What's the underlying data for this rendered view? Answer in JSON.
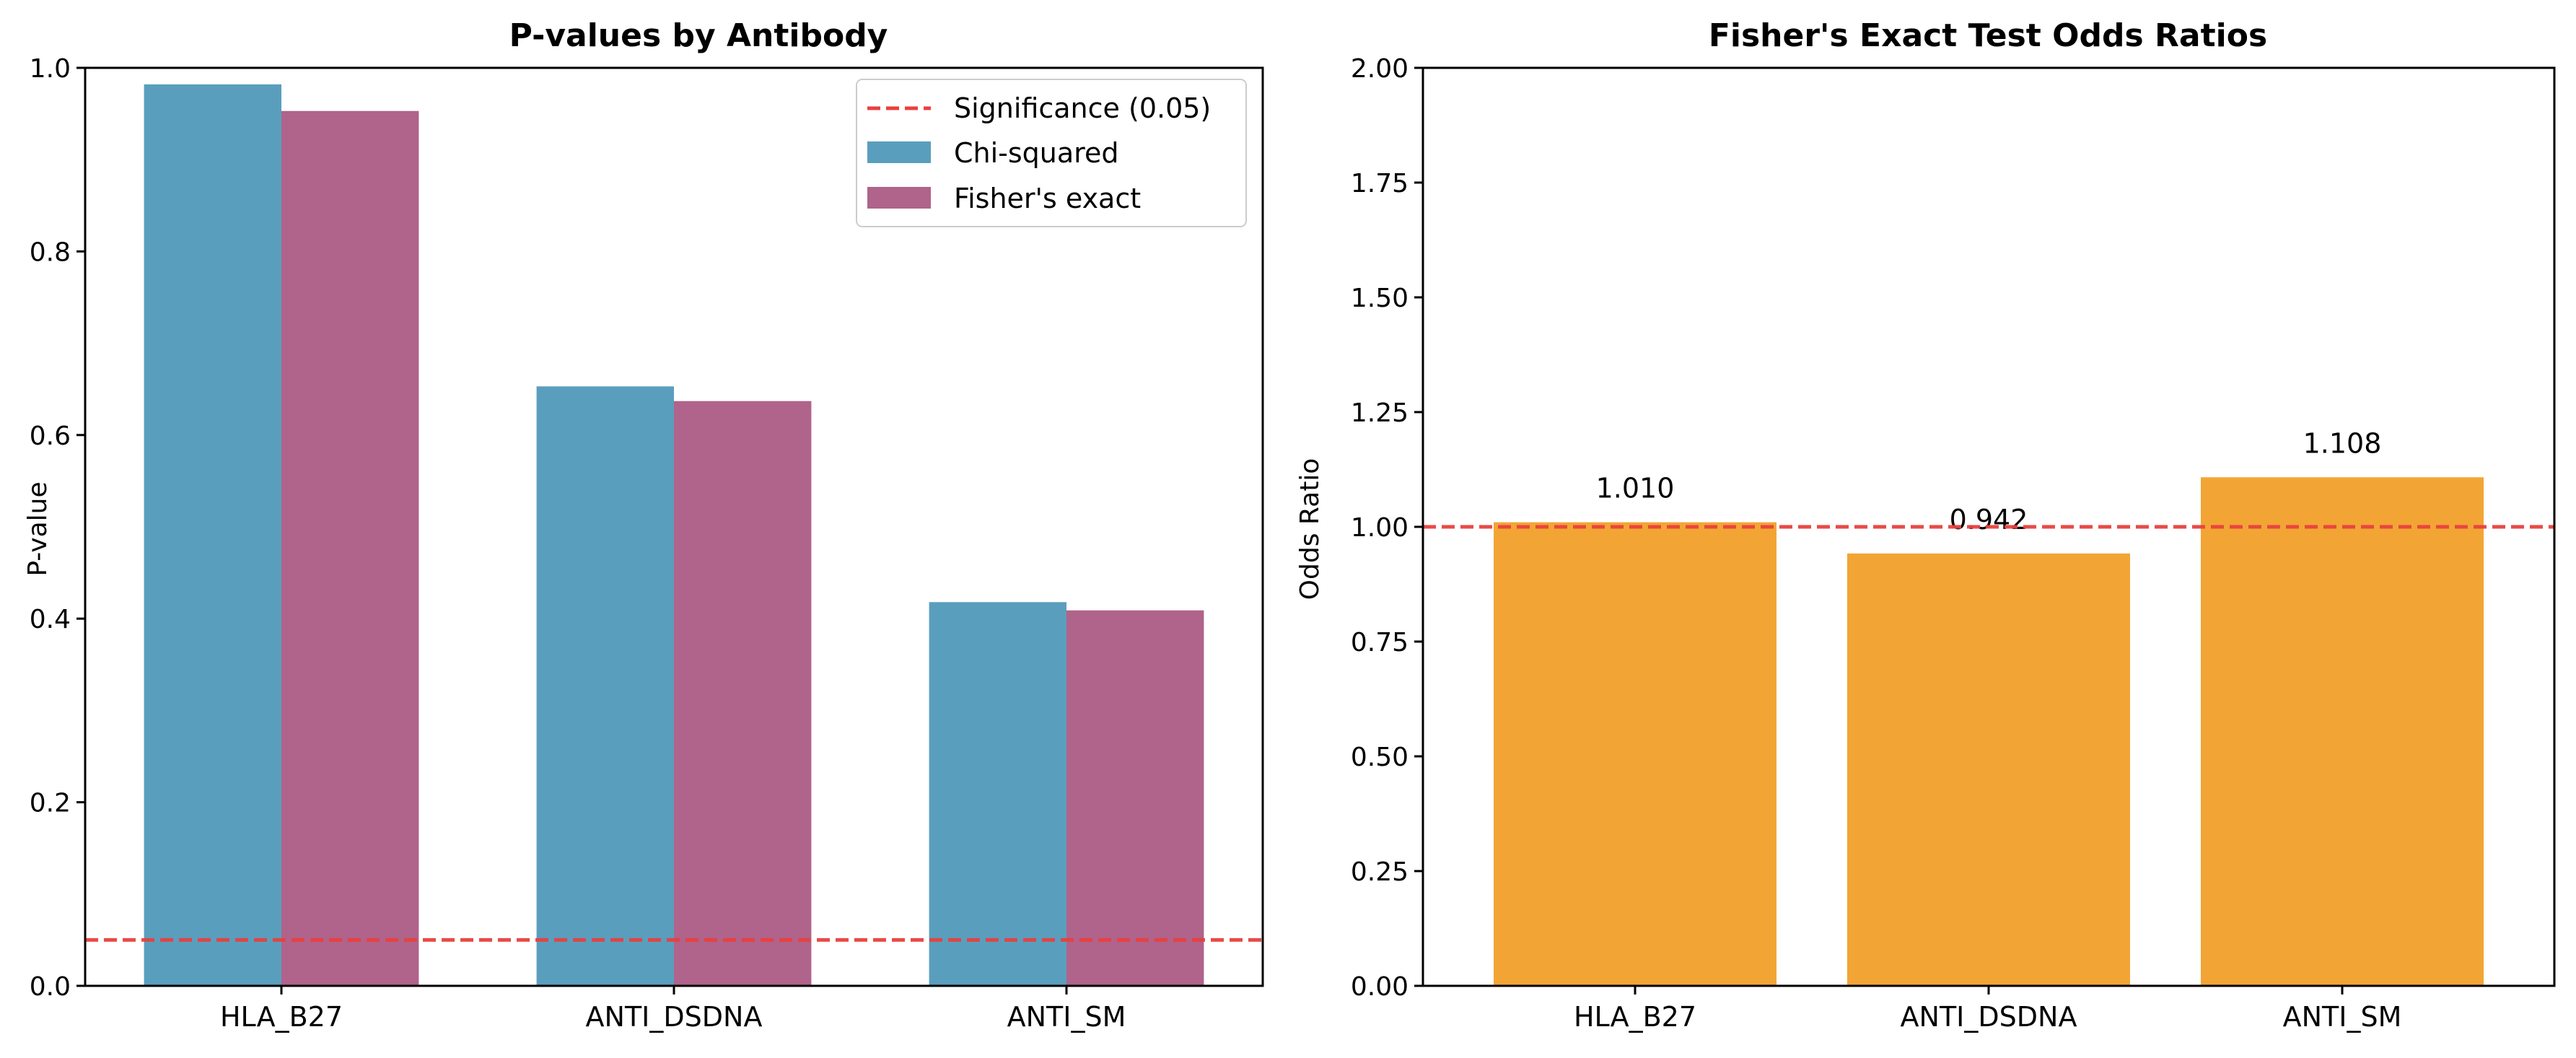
{
  "chart_data": [
    {
      "type": "bar",
      "title": "P-values by Antibody",
      "xlabel": "",
      "ylabel": "P-value",
      "categories": [
        "HLA_B27",
        "ANTI_DSDNA",
        "ANTI_SM"
      ],
      "ylim": [
        0,
        1.0
      ],
      "yticks": [
        0.0,
        0.2,
        0.4,
        0.6,
        0.8,
        1.0
      ],
      "ytick_labels": [
        "0.0",
        "0.2",
        "0.4",
        "0.6",
        "0.8",
        "1.0"
      ],
      "grid": false,
      "legend_position": "top-right",
      "series": [
        {
          "name": "Chi-squared",
          "values": [
            0.982,
            0.653,
            0.418
          ],
          "color": "#5a9ebd"
        },
        {
          "name": "Fisher's exact",
          "values": [
            0.953,
            0.637,
            0.409
          ],
          "color": "#b0638b"
        }
      ],
      "reference_line": {
        "label": "Significance (0.05)",
        "y": 0.05,
        "color": "#e8403d",
        "style": "dashed"
      }
    },
    {
      "type": "bar",
      "title": "Fisher's Exact Test Odds Ratios",
      "xlabel": "",
      "ylabel": "Odds Ratio",
      "categories": [
        "HLA_B27",
        "ANTI_DSDNA",
        "ANTI_SM"
      ],
      "ylim": [
        0,
        2.0
      ],
      "yticks": [
        0.0,
        0.25,
        0.5,
        0.75,
        1.0,
        1.25,
        1.5,
        1.75,
        2.0
      ],
      "ytick_labels": [
        "0.00",
        "0.25",
        "0.50",
        "0.75",
        "1.00",
        "1.25",
        "1.50",
        "1.75",
        "2.00"
      ],
      "grid": false,
      "series": [
        {
          "values": [
            1.01,
            0.942,
            1.108
          ],
          "color": "#f2a535"
        }
      ],
      "data_labels": [
        "1.010",
        "0.942",
        "1.108"
      ],
      "reference_line": {
        "y": 1.0,
        "color": "#e8403d",
        "style": "dashed"
      }
    }
  ]
}
